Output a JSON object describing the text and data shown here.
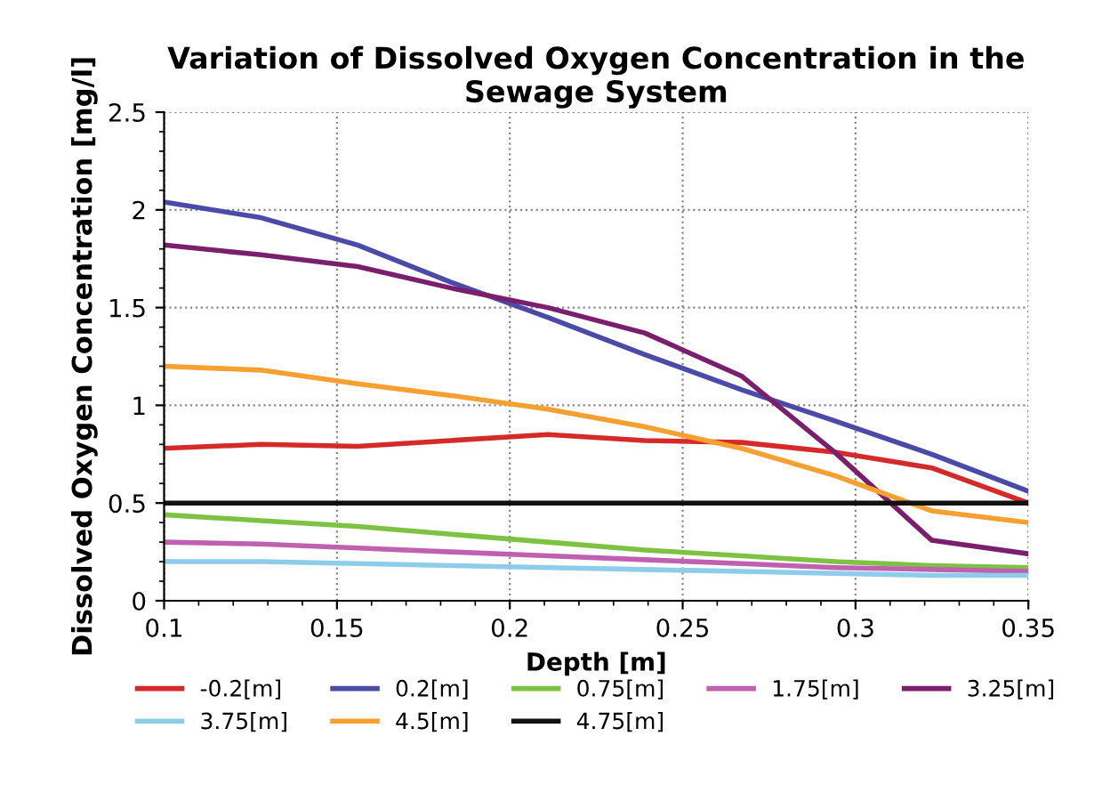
{
  "chart_data": {
    "type": "line",
    "title": "Variation of Dissolved Oxygen Concentration in the Sewage System",
    "xlabel": "Depth [m]",
    "ylabel": "Dissolved Oxygen Concentration [mg/l]",
    "x": [
      0.1,
      0.128,
      0.156,
      0.183,
      0.211,
      0.239,
      0.267,
      0.294,
      0.322,
      0.35
    ],
    "series": [
      {
        "name": "-0.2[m]",
        "color": "#d42a2a",
        "values": [
          0.78,
          0.8,
          0.79,
          0.82,
          0.85,
          0.82,
          0.81,
          0.76,
          0.68,
          0.5
        ]
      },
      {
        "name": "0.2[m]",
        "color": "#4a4aa8",
        "values": [
          2.04,
          1.96,
          1.82,
          1.63,
          1.45,
          1.26,
          1.08,
          0.92,
          0.75,
          0.56
        ]
      },
      {
        "name": "0.75[m]",
        "color": "#7dc242",
        "values": [
          0.44,
          0.41,
          0.38,
          0.34,
          0.3,
          0.26,
          0.23,
          0.2,
          0.18,
          0.17
        ]
      },
      {
        "name": "1.75[m]",
        "color": "#c060b0",
        "values": [
          0.3,
          0.29,
          0.27,
          0.25,
          0.23,
          0.21,
          0.19,
          0.17,
          0.16,
          0.15
        ]
      },
      {
        "name": "3.25[m]",
        "color": "#7a1f6e",
        "values": [
          1.82,
          1.77,
          1.71,
          1.6,
          1.5,
          1.37,
          1.15,
          0.76,
          0.31,
          0.24
        ]
      },
      {
        "name": "3.75[m]",
        "color": "#8ecdea",
        "values": [
          0.2,
          0.2,
          0.19,
          0.18,
          0.17,
          0.16,
          0.15,
          0.14,
          0.13,
          0.13
        ]
      },
      {
        "name": "4.5[m]",
        "color": "#f5a030",
        "values": [
          1.2,
          1.18,
          1.11,
          1.05,
          0.98,
          0.89,
          0.78,
          0.64,
          0.46,
          0.4
        ]
      },
      {
        "name": "4.75[m]",
        "color": "#111111",
        "values": [
          0.5,
          0.5,
          0.5,
          0.5,
          0.5,
          0.5,
          0.5,
          0.5,
          0.5,
          0.5
        ]
      }
    ],
    "xlim": [
      0.1,
      0.35
    ],
    "ylim": [
      0,
      2.5
    ],
    "xticks": [
      0.1,
      0.15,
      0.2,
      0.25,
      0.3,
      0.35
    ],
    "yticks": [
      0,
      0.5,
      1,
      1.5,
      2,
      2.5
    ],
    "grid": true,
    "legend": "bottom",
    "marker": "none",
    "line_style": "solid"
  }
}
